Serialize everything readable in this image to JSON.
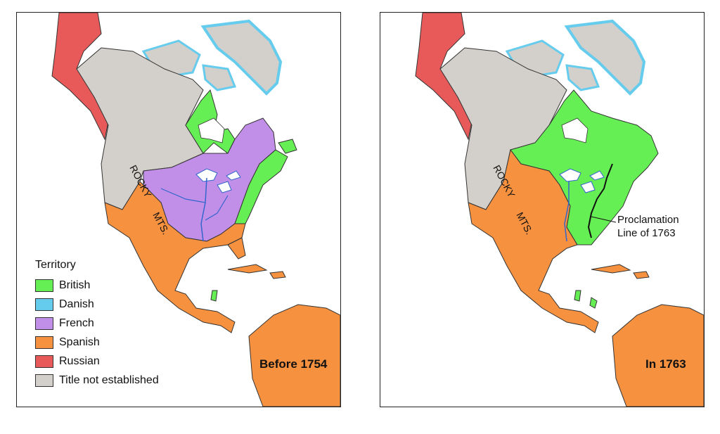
{
  "legend": {
    "title": "Territory",
    "items": [
      {
        "label": "British",
        "color": "#66ee55"
      },
      {
        "label": "Danish",
        "color": "#66ccee"
      },
      {
        "label": "French",
        "color": "#c28fe8"
      },
      {
        "label": "Spanish",
        "color": "#f5913f"
      },
      {
        "label": "Russian",
        "color": "#e85a5a"
      },
      {
        "label": "Title not established",
        "color": "#d3cfca"
      }
    ]
  },
  "maps": {
    "left": {
      "era": "Before 1754",
      "rocky": "ROCKY",
      "mts": "MTS."
    },
    "right": {
      "era": "In 1763",
      "rocky": "ROCKY",
      "mts": "MTS.",
      "proclamation_line1": "Proclamation",
      "proclamation_line2": "Line of 1763"
    }
  },
  "colors": {
    "water": "#ffffff",
    "coast_ice": "#66ccee",
    "border": "#333333",
    "river": "#3366cc"
  }
}
